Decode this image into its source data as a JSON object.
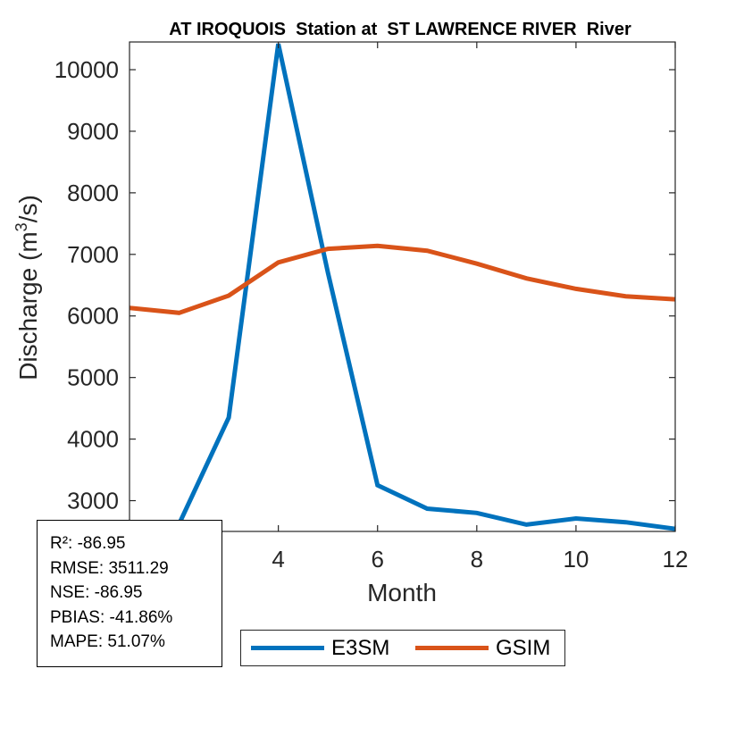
{
  "chart_data": {
    "type": "line",
    "title": "AT IROQUOIS  Station at  ST LAWRENCE RIVER  River",
    "xlabel": "Month",
    "ylabel_main": "Discharge (m",
    "ylabel_sup": "3",
    "ylabel_tail": "/s)",
    "xlim": [
      1,
      12
    ],
    "ylim": [
      2500,
      10450
    ],
    "x_ticks": [
      4,
      6,
      8,
      10,
      12
    ],
    "y_ticks": [
      3000,
      4000,
      5000,
      6000,
      7000,
      8000,
      9000,
      10000
    ],
    "x": [
      1,
      2,
      3,
      4,
      5,
      6,
      7,
      8,
      9,
      10,
      11,
      12
    ],
    "series": [
      {
        "name": "E3SM",
        "color": "#0072BD",
        "values": [
          1800,
          2620,
          4350,
          10420,
          6700,
          3250,
          2870,
          2800,
          2610,
          2710,
          2650,
          2540
        ]
      },
      {
        "name": "GSIM",
        "color": "#D95319",
        "values": [
          6130,
          6050,
          6330,
          6870,
          7090,
          7140,
          7060,
          6850,
          6610,
          6440,
          6320,
          6270
        ]
      }
    ],
    "grid": false,
    "legend_position": "bottom"
  },
  "stats": {
    "r2": "R²: -86.95",
    "rmse": "RMSE: 3511.29",
    "nse": "NSE: -86.95",
    "pbias": "PBIAS: -41.86%",
    "mape": "MAPE: 51.07%"
  },
  "legend": {
    "items": [
      {
        "label": "E3SM",
        "color": "#0072BD"
      },
      {
        "label": "GSIM",
        "color": "#D95319"
      }
    ]
  }
}
